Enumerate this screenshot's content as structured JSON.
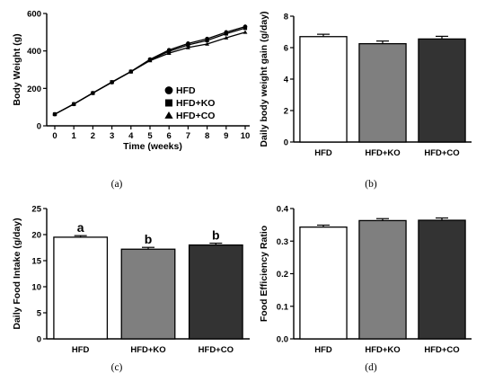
{
  "chart_data": [
    {
      "panel": "(a)",
      "type": "line",
      "xlabel": "Time (weeks)",
      "ylabel": "Body Weight (g)",
      "xlim": [
        0,
        10
      ],
      "ylim": [
        0,
        600
      ],
      "x_ticks": [
        "0",
        "1",
        "2",
        "3",
        "4",
        "5",
        "6",
        "7",
        "8",
        "9",
        "10"
      ],
      "y_ticks": [
        "0",
        "200",
        "400",
        "600"
      ],
      "x": [
        0,
        1,
        2,
        3,
        4,
        5,
        6,
        7,
        8,
        9,
        10
      ],
      "series": [
        {
          "name": "HFD",
          "marker": "circle",
          "values": [
            62,
            116,
            175,
            232,
            290,
            355,
            405,
            440,
            465,
            500,
            530
          ]
        },
        {
          "name": "HFD+KO",
          "marker": "square",
          "values": [
            62,
            116,
            175,
            234,
            290,
            352,
            398,
            432,
            456,
            492,
            522
          ]
        },
        {
          "name": "HFD+CO",
          "marker": "triangle",
          "values": [
            62,
            117,
            176,
            233,
            289,
            348,
            388,
            418,
            437,
            470,
            500
          ]
        }
      ],
      "legend": "bottom-right",
      "grid": false
    },
    {
      "panel": "(b)",
      "type": "bar",
      "ylabel": "Daily body weight gain (g/day)",
      "categories": [
        "HFD",
        "HFD+KO",
        "HFD+CO"
      ],
      "values": [
        6.7,
        6.25,
        6.55
      ],
      "errors": [
        0.15,
        0.17,
        0.17
      ],
      "ylim": [
        0,
        8
      ],
      "y_ticks": [
        "0",
        "2",
        "4",
        "6",
        "8"
      ],
      "colors": [
        "#ffffff",
        "#7f7f7f",
        "#333333"
      ],
      "grid": false
    },
    {
      "panel": "(c)",
      "type": "bar",
      "ylabel": "Daily Food Intake (g/day)",
      "categories": [
        "HFD",
        "HFD+KO",
        "HFD+CO"
      ],
      "values": [
        19.5,
        17.2,
        18.0
      ],
      "errors": [
        0.3,
        0.35,
        0.35
      ],
      "annotations": [
        "a",
        "b",
        "b"
      ],
      "ylim": [
        0,
        25
      ],
      "y_ticks": [
        "0",
        "5",
        "10",
        "15",
        "20",
        "25"
      ],
      "colors": [
        "#ffffff",
        "#7f7f7f",
        "#333333"
      ],
      "grid": false
    },
    {
      "panel": "(d)",
      "type": "bar",
      "ylabel": "Food Efficiency Ratio",
      "categories": [
        "HFD",
        "HFD+KO",
        "HFD+CO"
      ],
      "values": [
        0.343,
        0.363,
        0.364
      ],
      "errors": [
        0.006,
        0.006,
        0.007
      ],
      "ylim": [
        0,
        0.4
      ],
      "y_ticks": [
        "0.0",
        "0.1",
        "0.2",
        "0.3",
        "0.4"
      ],
      "colors": [
        "#ffffff",
        "#7f7f7f",
        "#333333"
      ],
      "grid": false
    }
  ]
}
